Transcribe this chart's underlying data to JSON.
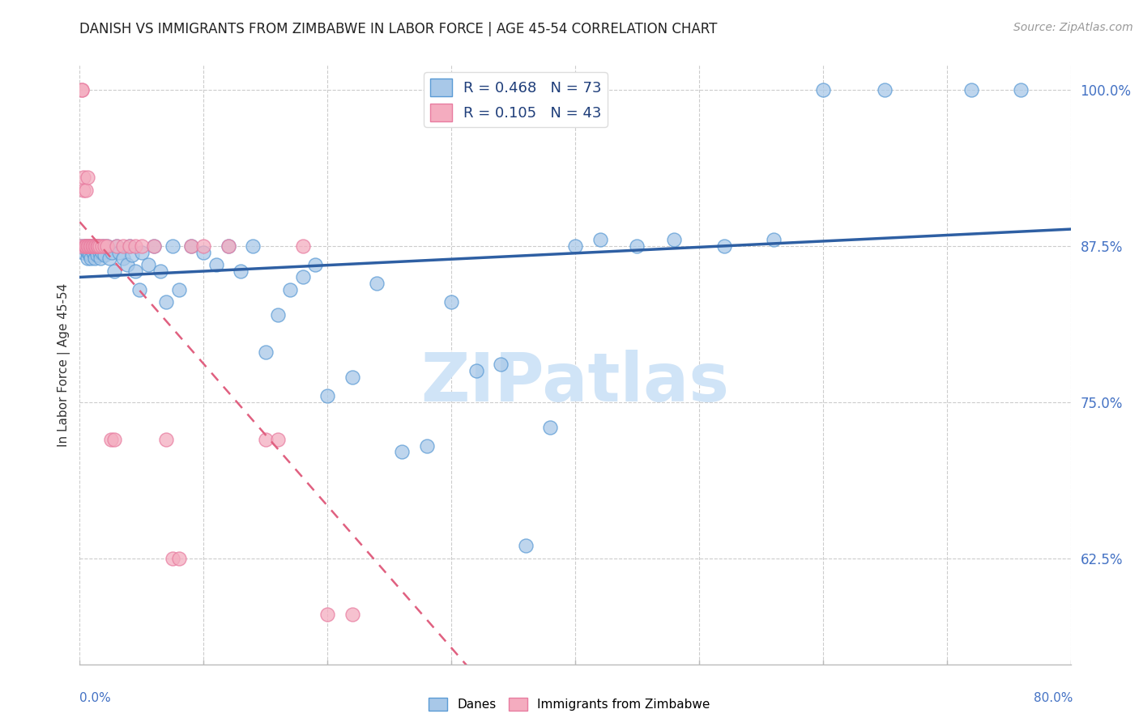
{
  "title": "DANISH VS IMMIGRANTS FROM ZIMBABWE IN LABOR FORCE | AGE 45-54 CORRELATION CHART",
  "source": "Source: ZipAtlas.com",
  "ylabel": "In Labor Force | Age 45-54",
  "xlim": [
    0.0,
    0.8
  ],
  "ylim": [
    0.54,
    1.02
  ],
  "right_yticks": [
    0.625,
    0.75,
    0.875,
    1.0
  ],
  "right_yticklabels": [
    "62.5%",
    "75.0%",
    "87.5%",
    "100.0%"
  ],
  "danes_color": "#A8C8E8",
  "danes_edge_color": "#5B9BD5",
  "zimbabwe_color": "#F4ACBF",
  "zimbabwe_edge_color": "#E87CA0",
  "trend_danes_color": "#2E5FA3",
  "trend_zimbabwe_color": "#E06080",
  "R_danes": 0.468,
  "N_danes": 73,
  "R_zimbabwe": 0.105,
  "N_zimbabwe": 43,
  "danes_x": [
    0.002,
    0.003,
    0.004,
    0.005,
    0.006,
    0.006,
    0.007,
    0.007,
    0.008,
    0.008,
    0.009,
    0.01,
    0.01,
    0.011,
    0.012,
    0.013,
    0.014,
    0.015,
    0.016,
    0.017,
    0.018,
    0.019,
    0.02,
    0.022,
    0.024,
    0.026,
    0.028,
    0.03,
    0.032,
    0.035,
    0.038,
    0.04,
    0.042,
    0.045,
    0.048,
    0.05,
    0.055,
    0.06,
    0.065,
    0.07,
    0.075,
    0.08,
    0.09,
    0.1,
    0.11,
    0.12,
    0.13,
    0.14,
    0.15,
    0.16,
    0.17,
    0.18,
    0.19,
    0.2,
    0.22,
    0.24,
    0.26,
    0.28,
    0.3,
    0.32,
    0.34,
    0.36,
    0.38,
    0.4,
    0.42,
    0.45,
    0.48,
    0.52,
    0.56,
    0.6,
    0.65,
    0.72,
    0.76
  ],
  "danes_y": [
    0.875,
    0.87,
    0.875,
    0.875,
    0.87,
    0.865,
    0.875,
    0.87,
    0.875,
    0.868,
    0.865,
    0.872,
    0.875,
    0.87,
    0.865,
    0.872,
    0.868,
    0.875,
    0.87,
    0.865,
    0.87,
    0.875,
    0.868,
    0.875,
    0.865,
    0.87,
    0.855,
    0.875,
    0.87,
    0.865,
    0.86,
    0.875,
    0.868,
    0.855,
    0.84,
    0.87,
    0.86,
    0.875,
    0.855,
    0.83,
    0.875,
    0.84,
    0.875,
    0.87,
    0.86,
    0.875,
    0.855,
    0.875,
    0.79,
    0.82,
    0.84,
    0.85,
    0.86,
    0.755,
    0.77,
    0.845,
    0.71,
    0.715,
    0.83,
    0.775,
    0.78,
    0.635,
    0.73,
    0.875,
    0.88,
    0.875,
    0.88,
    0.875,
    0.88,
    1.0,
    1.0,
    1.0,
    1.0
  ],
  "zimbabwe_x": [
    0.001,
    0.002,
    0.002,
    0.003,
    0.003,
    0.004,
    0.004,
    0.005,
    0.005,
    0.006,
    0.006,
    0.007,
    0.008,
    0.009,
    0.01,
    0.011,
    0.012,
    0.013,
    0.014,
    0.015,
    0.016,
    0.018,
    0.02,
    0.022,
    0.025,
    0.028,
    0.03,
    0.035,
    0.04,
    0.045,
    0.05,
    0.06,
    0.07,
    0.075,
    0.08,
    0.09,
    0.1,
    0.12,
    0.15,
    0.16,
    0.18,
    0.2,
    0.22
  ],
  "zimbabwe_y": [
    0.875,
    1.0,
    1.0,
    0.93,
    0.92,
    0.875,
    0.875,
    0.92,
    0.875,
    0.93,
    0.875,
    0.875,
    0.875,
    0.875,
    0.875,
    0.875,
    0.875,
    0.875,
    0.875,
    0.875,
    0.875,
    0.875,
    0.875,
    0.875,
    0.72,
    0.72,
    0.875,
    0.875,
    0.875,
    0.875,
    0.875,
    0.875,
    0.72,
    0.625,
    0.625,
    0.875,
    0.875,
    0.875,
    0.72,
    0.72,
    0.875,
    0.58,
    0.58
  ],
  "watermark": "ZIPatlas",
  "watermark_color": "#D0E4F7",
  "grid_color": "#CCCCCC",
  "background_color": "#FFFFFF"
}
